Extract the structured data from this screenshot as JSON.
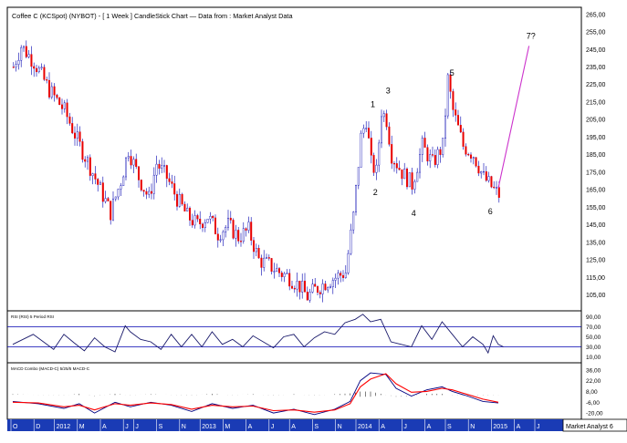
{
  "chart_data": [
    {
      "type": "candlestick",
      "title": "Coffee C (KCSpot) (NYBOT) -  [ 1 Week ] CandleStick Chart — Data from : Market Analyst Data",
      "ylim": [
        97,
        268
      ],
      "y_ticks": [
        "265,00",
        "255,00",
        "245,00",
        "235,00",
        "225,00",
        "215,00",
        "205,00",
        "195,00",
        "185,00",
        "175,00",
        "165,00",
        "155,00",
        "145,00",
        "135,00",
        "125,00",
        "115,00",
        "105,00"
      ],
      "y_tick_values": [
        265,
        255,
        245,
        235,
        225,
        215,
        205,
        195,
        185,
        175,
        165,
        155,
        145,
        135,
        125,
        115,
        105
      ],
      "x_month_labels": [
        "O",
        "D",
        "2012",
        "M",
        "A",
        "J",
        "J",
        "S",
        "N",
        "2013",
        "M",
        "A",
        "J",
        "A",
        "S",
        "N",
        "2014",
        "A",
        "J",
        "A",
        "S",
        "N",
        "2015",
        "A",
        "J"
      ],
      "x_label_weeks": [
        0,
        9,
        17,
        26,
        35,
        44,
        48,
        57,
        66,
        74,
        83,
        92,
        101,
        109,
        118,
        127,
        135,
        144,
        153,
        162,
        170,
        179,
        188,
        197,
        205
      ],
      "approx_price_path": [
        [
          0,
          235
        ],
        [
          3,
          247
        ],
        [
          8,
          238
        ],
        [
          14,
          222
        ],
        [
          20,
          210
        ],
        [
          26,
          190
        ],
        [
          30,
          178
        ],
        [
          34,
          165
        ],
        [
          38,
          152
        ],
        [
          42,
          170
        ],
        [
          45,
          188
        ],
        [
          49,
          172
        ],
        [
          53,
          160
        ],
        [
          56,
          180
        ],
        [
          60,
          172
        ],
        [
          64,
          160
        ],
        [
          68,
          150
        ],
        [
          72,
          145
        ],
        [
          76,
          150
        ],
        [
          80,
          140
        ],
        [
          84,
          145
        ],
        [
          88,
          138
        ],
        [
          92,
          142
        ],
        [
          96,
          125
        ],
        [
          100,
          122
        ],
        [
          104,
          118
        ],
        [
          108,
          115
        ],
        [
          112,
          110
        ],
        [
          115,
          104
        ],
        [
          118,
          108
        ],
        [
          122,
          112
        ],
        [
          126,
          115
        ],
        [
          130,
          118
        ],
        [
          133,
          150
        ],
        [
          136,
          195
        ],
        [
          138,
          205
        ],
        [
          140,
          180
        ],
        [
          142,
          175
        ],
        [
          144,
          210
        ],
        [
          146,
          205
        ],
        [
          148,
          185
        ],
        [
          152,
          175
        ],
        [
          156,
          168
        ],
        [
          160,
          190
        ],
        [
          164,
          180
        ],
        [
          168,
          190
        ],
        [
          170,
          228
        ],
        [
          172,
          210
        ],
        [
          176,
          190
        ],
        [
          180,
          185
        ],
        [
          184,
          172
        ],
        [
          188,
          165
        ],
        [
          190,
          162
        ]
      ],
      "wave_labels": [
        {
          "text": "1",
          "week": 140,
          "price": 212
        },
        {
          "text": "2",
          "week": 141,
          "price": 162
        },
        {
          "text": "3",
          "week": 146,
          "price": 220
        },
        {
          "text": "4",
          "week": 156,
          "price": 150
        },
        {
          "text": "5",
          "week": 171,
          "price": 230
        },
        {
          "text": "6",
          "week": 186,
          "price": 151
        },
        {
          "text": "7?",
          "week": 201,
          "price": 251
        }
      ],
      "projection": {
        "color": "#cc33cc",
        "from_week": 190,
        "from_price": 166,
        "to_week": 202,
        "to_price": 247
      },
      "watermark": "Market Analyst 6"
    },
    {
      "type": "line",
      "title": "RSI (RSI) 5 Period RSI",
      "ylim": [
        0,
        100
      ],
      "y_ticks": [
        "90,00",
        "70,00",
        "50,00",
        "30,00",
        "10,00"
      ],
      "y_tick_values": [
        90,
        70,
        50,
        30,
        10
      ],
      "levels": [
        70,
        30
      ],
      "approx_series": [
        [
          0,
          35
        ],
        [
          4,
          45
        ],
        [
          8,
          55
        ],
        [
          12,
          40
        ],
        [
          16,
          25
        ],
        [
          20,
          55
        ],
        [
          24,
          38
        ],
        [
          28,
          22
        ],
        [
          32,
          48
        ],
        [
          36,
          30
        ],
        [
          40,
          20
        ],
        [
          44,
          72
        ],
        [
          46,
          60
        ],
        [
          50,
          45
        ],
        [
          54,
          40
        ],
        [
          58,
          25
        ],
        [
          62,
          55
        ],
        [
          66,
          30
        ],
        [
          70,
          55
        ],
        [
          74,
          30
        ],
        [
          78,
          60
        ],
        [
          82,
          35
        ],
        [
          86,
          45
        ],
        [
          90,
          30
        ],
        [
          94,
          52
        ],
        [
          98,
          40
        ],
        [
          102,
          28
        ],
        [
          106,
          50
        ],
        [
          110,
          55
        ],
        [
          114,
          30
        ],
        [
          118,
          48
        ],
        [
          122,
          60
        ],
        [
          126,
          55
        ],
        [
          130,
          78
        ],
        [
          134,
          85
        ],
        [
          137,
          95
        ],
        [
          140,
          80
        ],
        [
          144,
          85
        ],
        [
          148,
          40
        ],
        [
          152,
          35
        ],
        [
          156,
          30
        ],
        [
          160,
          72
        ],
        [
          164,
          45
        ],
        [
          168,
          80
        ],
        [
          172,
          55
        ],
        [
          176,
          30
        ],
        [
          180,
          50
        ],
        [
          184,
          35
        ],
        [
          186,
          18
        ],
        [
          188,
          52
        ],
        [
          190,
          35
        ],
        [
          192,
          30
        ]
      ]
    },
    {
      "type": "line",
      "title": "MACD Combo (MACD-C) 5/25/5 MACD-C",
      "ylim": [
        -27,
        44
      ],
      "y_ticks": [
        "36,00",
        "22,00",
        "8,00",
        "-6,00",
        "-20,00"
      ],
      "y_tick_values": [
        36,
        22,
        8,
        -6,
        -20
      ],
      "series": [
        {
          "name": "MACD",
          "color": "#000080",
          "approx_values": [
            [
              0,
              -5
            ],
            [
              10,
              -8
            ],
            [
              20,
              -14
            ],
            [
              26,
              -8
            ],
            [
              32,
              -20
            ],
            [
              40,
              -6
            ],
            [
              46,
              -12
            ],
            [
              54,
              -6
            ],
            [
              62,
              -10
            ],
            [
              70,
              -18
            ],
            [
              78,
              -8
            ],
            [
              86,
              -14
            ],
            [
              94,
              -10
            ],
            [
              102,
              -20
            ],
            [
              110,
              -15
            ],
            [
              118,
              -22
            ],
            [
              126,
              -15
            ],
            [
              132,
              -5
            ],
            [
              136,
              22
            ],
            [
              140,
              32
            ],
            [
              146,
              30
            ],
            [
              150,
              12
            ],
            [
              156,
              2
            ],
            [
              162,
              10
            ],
            [
              168,
              14
            ],
            [
              172,
              8
            ],
            [
              178,
              2
            ],
            [
              184,
              -5
            ],
            [
              190,
              -7
            ]
          ]
        },
        {
          "name": "Signal",
          "color": "#ff0000",
          "approx_values": [
            [
              0,
              -6
            ],
            [
              10,
              -7
            ],
            [
              20,
              -12
            ],
            [
              26,
              -10
            ],
            [
              32,
              -16
            ],
            [
              40,
              -8
            ],
            [
              46,
              -10
            ],
            [
              54,
              -7
            ],
            [
              62,
              -9
            ],
            [
              70,
              -15
            ],
            [
              78,
              -10
            ],
            [
              86,
              -12
            ],
            [
              94,
              -11
            ],
            [
              102,
              -17
            ],
            [
              110,
              -16
            ],
            [
              118,
              -19
            ],
            [
              126,
              -16
            ],
            [
              132,
              -8
            ],
            [
              136,
              14
            ],
            [
              140,
              24
            ],
            [
              146,
              31
            ],
            [
              150,
              18
            ],
            [
              156,
              7
            ],
            [
              162,
              8
            ],
            [
              168,
              12
            ],
            [
              172,
              10
            ],
            [
              178,
              4
            ],
            [
              184,
              -2
            ],
            [
              190,
              -6
            ]
          ]
        }
      ]
    }
  ]
}
